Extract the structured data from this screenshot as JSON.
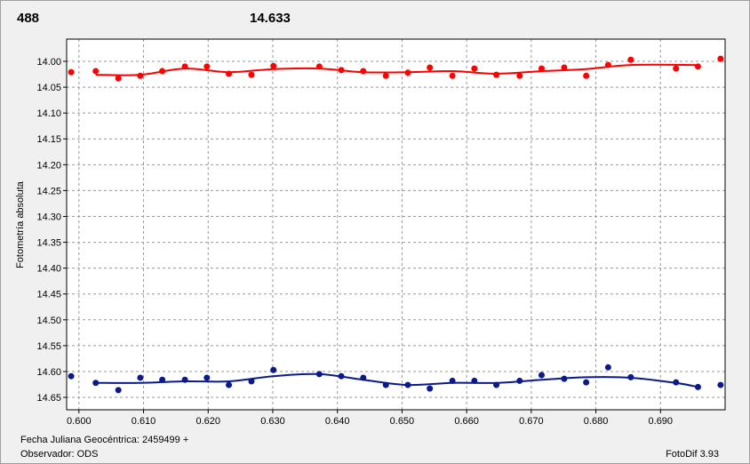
{
  "chart_data": {
    "type": "scatter",
    "annotations": [
      {
        "text": "488",
        "color": "#ff0000"
      },
      {
        "text": "14.633",
        "color": "#0a1a8a"
      }
    ],
    "ylabel": "Fotometría absoluta",
    "xlabel": "Fecha Juliana Geocéntrica: 2459499 +",
    "observer": "Observador: ODS",
    "software": "FotoDif 3.93",
    "xlim": [
      0.5981,
      0.7
    ],
    "ylim": [
      14.674,
      13.957
    ],
    "xticks": [
      {
        "value": 0.6,
        "label": "0.600"
      },
      {
        "value": 0.61,
        "label": "0.610"
      },
      {
        "value": 0.62,
        "label": "0.620"
      },
      {
        "value": 0.63,
        "label": "0.630"
      },
      {
        "value": 0.64,
        "label": "0.640"
      },
      {
        "value": 0.65,
        "label": "0.650"
      },
      {
        "value": 0.66,
        "label": "0.660"
      },
      {
        "value": 0.67,
        "label": "0.670"
      },
      {
        "value": 0.68,
        "label": "0.680"
      },
      {
        "value": 0.69,
        "label": "0.690"
      }
    ],
    "yticks": [
      {
        "value": 14.0,
        "label": "14.00"
      },
      {
        "value": 14.05,
        "label": "14.05"
      },
      {
        "value": 14.1,
        "label": "14.10"
      },
      {
        "value": 14.15,
        "label": "14.15"
      },
      {
        "value": 14.2,
        "label": "14.20"
      },
      {
        "value": 14.25,
        "label": "14.25"
      },
      {
        "value": 14.3,
        "label": "14.30"
      },
      {
        "value": 14.35,
        "label": "14.35"
      },
      {
        "value": 14.4,
        "label": "14.40"
      },
      {
        "value": 14.45,
        "label": "14.45"
      },
      {
        "value": 14.5,
        "label": "14.50"
      },
      {
        "value": 14.55,
        "label": "14.55"
      },
      {
        "value": 14.6,
        "label": "14.60"
      },
      {
        "value": 14.65,
        "label": "14.65"
      }
    ],
    "grid": true,
    "series": [
      {
        "kind": "points",
        "color": "#ff0000",
        "x": [
          0.5988,
          0.6026,
          0.6061,
          0.6095,
          0.6129,
          0.6164,
          0.6198,
          0.6232,
          0.6267,
          0.6301,
          0.6372,
          0.6406,
          0.644,
          0.6475,
          0.6509,
          0.6543,
          0.6578,
          0.6612,
          0.6646,
          0.6682,
          0.6716,
          0.6751,
          0.6785,
          0.6819,
          0.6854,
          0.6924,
          0.6958,
          0.6993
        ],
        "values": [
          14.021,
          14.019,
          14.033,
          14.028,
          14.019,
          14.01,
          14.01,
          14.024,
          14.026,
          14.009,
          14.01,
          14.017,
          14.019,
          14.028,
          14.022,
          14.012,
          14.028,
          14.014,
          14.026,
          14.028,
          14.014,
          14.012,
          14.028,
          14.007,
          13.997,
          14.014,
          14.01,
          13.995
        ]
      },
      {
        "kind": "points",
        "color": "#0a1a8a",
        "x": [
          0.5988,
          0.6026,
          0.6061,
          0.6095,
          0.6129,
          0.6164,
          0.6198,
          0.6232,
          0.6267,
          0.6301,
          0.6372,
          0.6406,
          0.644,
          0.6475,
          0.6509,
          0.6543,
          0.6578,
          0.6612,
          0.6646,
          0.6682,
          0.6716,
          0.6751,
          0.6785,
          0.6819,
          0.6854,
          0.6924,
          0.6958,
          0.6993
        ],
        "values": [
          14.609,
          14.622,
          14.636,
          14.612,
          14.616,
          14.616,
          14.612,
          14.626,
          14.619,
          14.597,
          14.605,
          14.609,
          14.612,
          14.626,
          14.626,
          14.633,
          14.618,
          14.618,
          14.626,
          14.618,
          14.607,
          14.614,
          14.621,
          14.592,
          14.611,
          14.621,
          14.63,
          14.626
        ]
      },
      {
        "kind": "fit",
        "color": "#ff0000",
        "x": [
          0.6026,
          0.6095,
          0.6164,
          0.6232,
          0.6301,
          0.6372,
          0.644,
          0.6509,
          0.6578,
          0.6646,
          0.6716,
          0.6785,
          0.6854,
          0.6958
        ],
        "values": [
          14.026,
          14.026,
          14.014,
          14.021,
          14.015,
          14.014,
          14.021,
          14.021,
          14.019,
          14.024,
          14.019,
          14.015,
          14.007,
          14.007
        ]
      },
      {
        "kind": "fit",
        "color": "#0a1a8a",
        "x": [
          0.6026,
          0.6095,
          0.6164,
          0.6232,
          0.6301,
          0.6372,
          0.644,
          0.6509,
          0.6578,
          0.6646,
          0.6716,
          0.6785,
          0.6854,
          0.6924,
          0.6958
        ],
        "values": [
          14.622,
          14.622,
          14.619,
          14.619,
          14.609,
          14.605,
          14.616,
          14.626,
          14.622,
          14.622,
          14.616,
          14.611,
          14.612,
          14.622,
          14.63
        ]
      }
    ]
  }
}
